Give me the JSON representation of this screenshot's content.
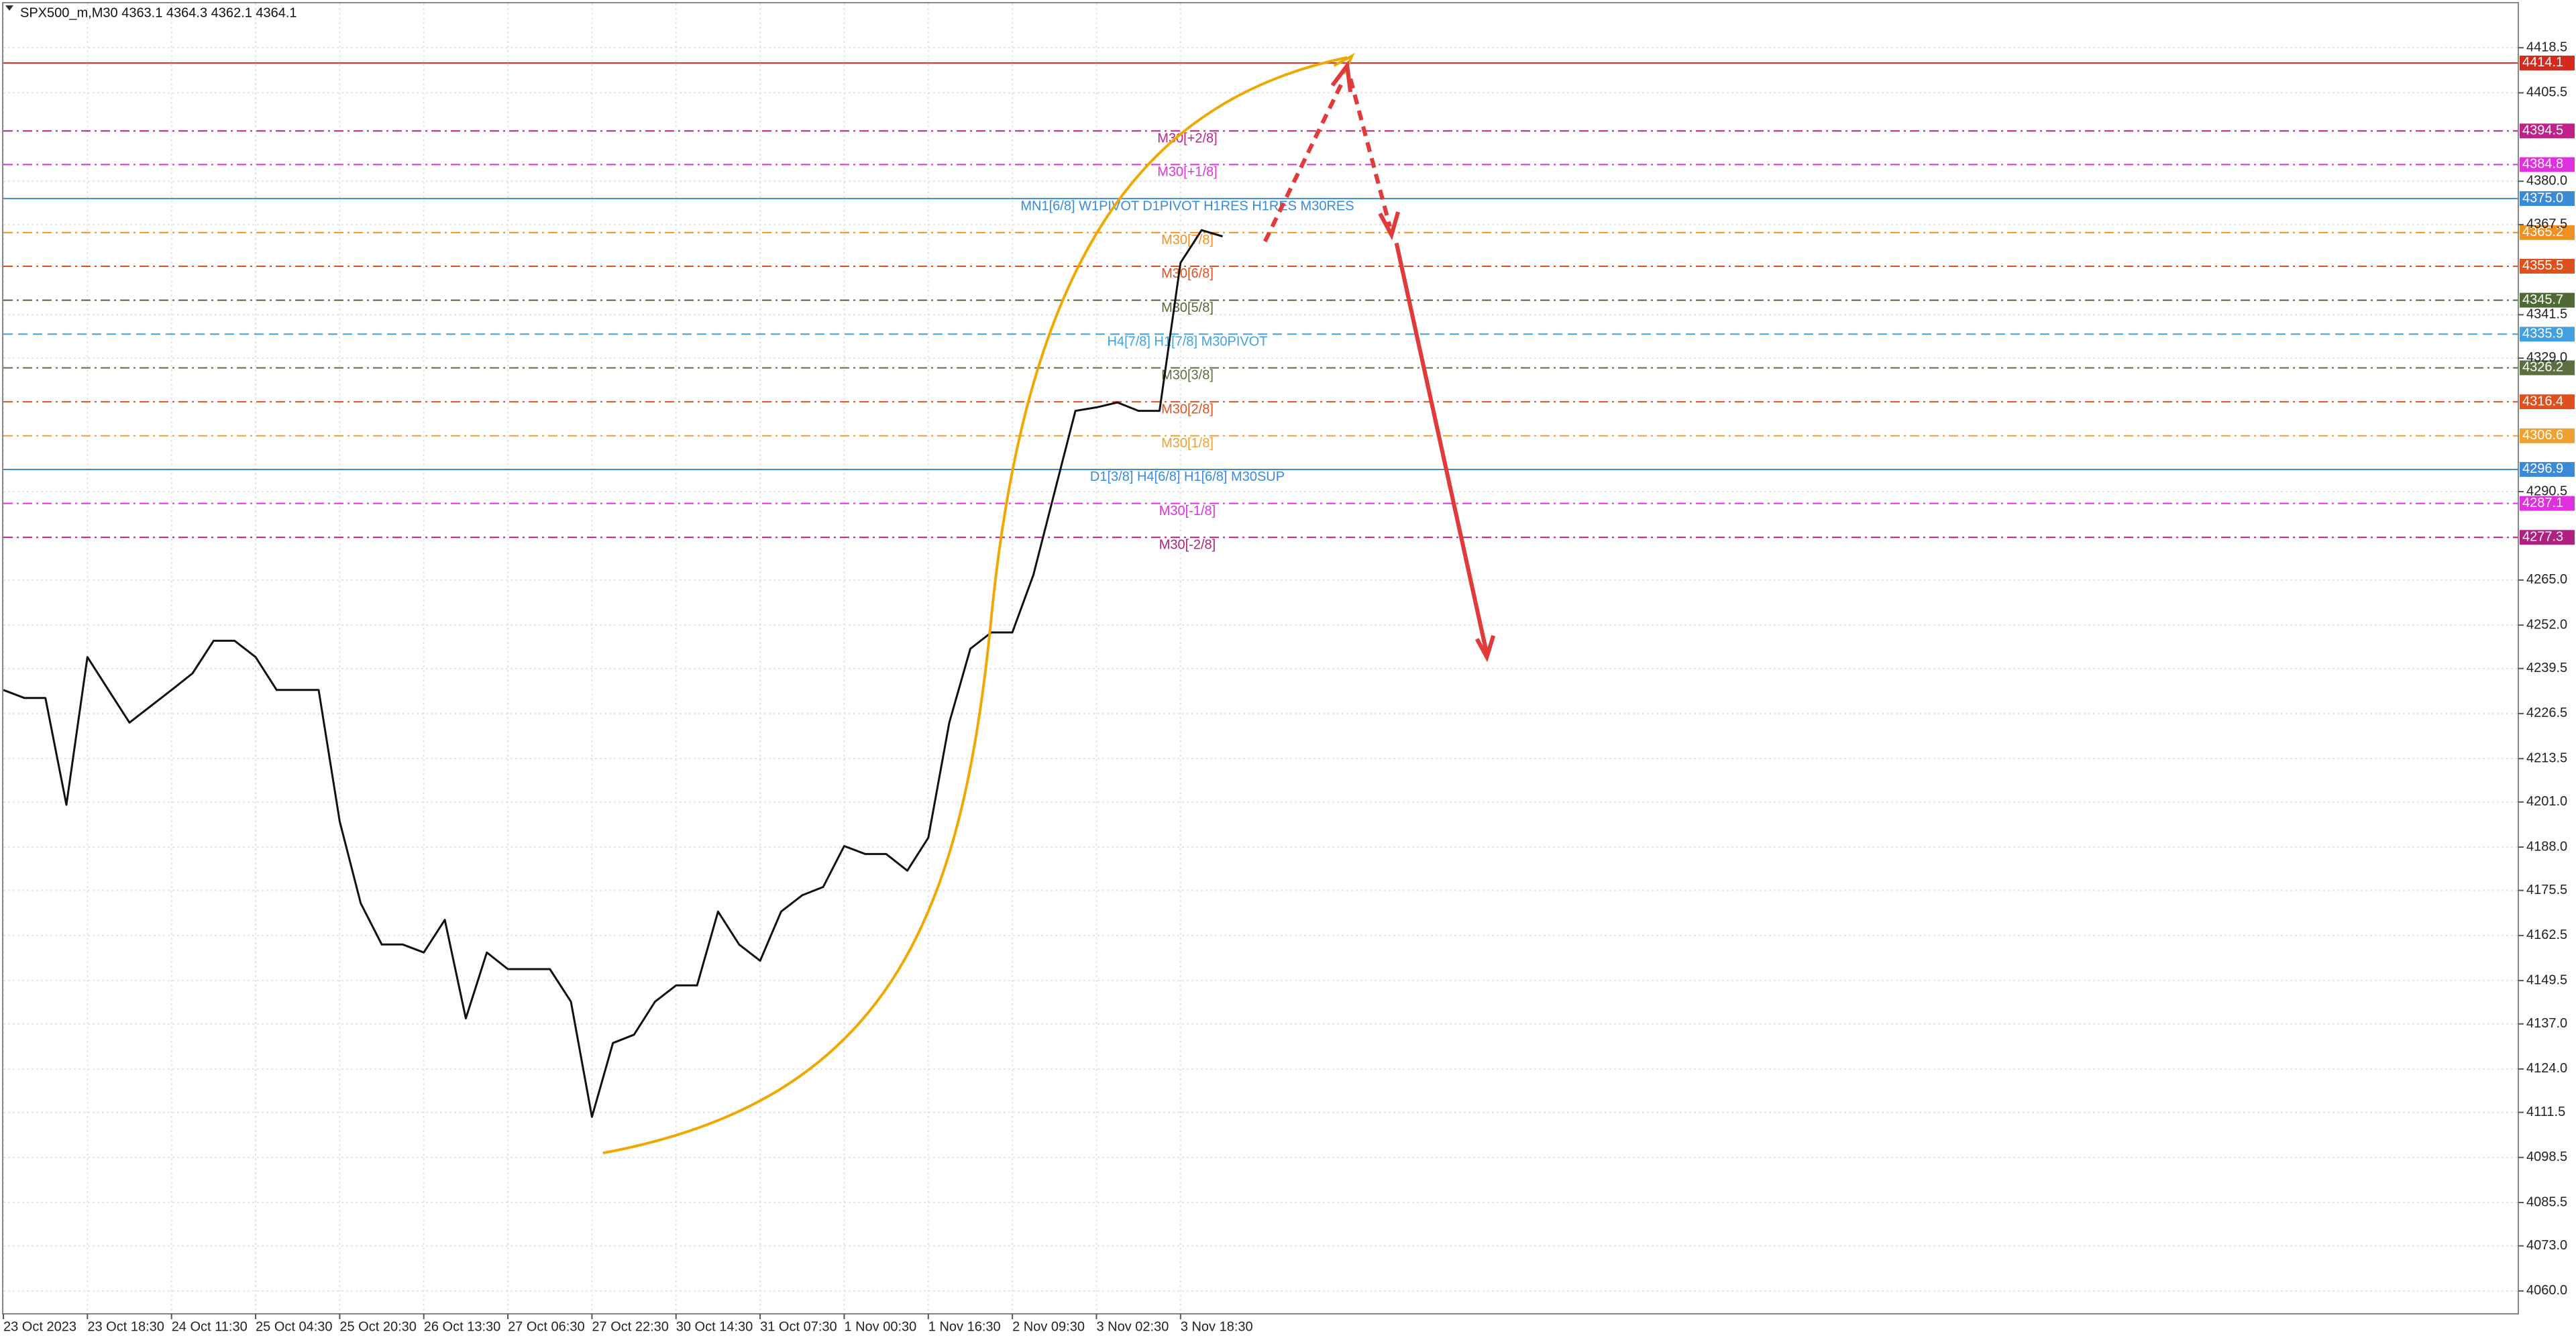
{
  "chart_data": {
    "type": "line",
    "title": "SPX500_m,M30  4363.1 4364.3 4362.1 4364.1",
    "categories": [
      "23 Oct 2023",
      null,
      null,
      null,
      "23 Oct 18:30",
      null,
      null,
      null,
      "24 Oct 11:30",
      null,
      null,
      null,
      "25 Oct 04:30",
      null,
      null,
      null,
      "25 Oct 20:30",
      null,
      null,
      null,
      "26 Oct 13:30",
      null,
      null,
      null,
      "27 Oct 06:30",
      null,
      null,
      null,
      "27 Oct 22:30",
      null,
      null,
      null,
      "30 Oct 14:30",
      null,
      null,
      null,
      "31 Oct 07:30",
      null,
      null,
      null,
      "1 Nov 00:30",
      null,
      null,
      null,
      "1 Nov 16:30",
      null,
      null,
      null,
      "2 Nov 09:30",
      null,
      null,
      null,
      "3 Nov 02:30",
      null,
      null,
      null,
      "3 Nov 18:30",
      null,
      null,
      null,
      null,
      null,
      null,
      null,
      null,
      null,
      null,
      null,
      null,
      null,
      null,
      null,
      null,
      null,
      null,
      null,
      null,
      null,
      null,
      null,
      null,
      null,
      null,
      null,
      null,
      null,
      null,
      null,
      null,
      null,
      null,
      null,
      null,
      null,
      null,
      null,
      null,
      null,
      null,
      null,
      null,
      null,
      null,
      null,
      null,
      null,
      null,
      null,
      null,
      null,
      null,
      null,
      null,
      null,
      null,
      null,
      null,
      null,
      null,
      null
    ],
    "values": [
      4233.3,
      4231.0,
      4231.0,
      4200.2,
      4242.8,
      4233.3,
      4223.9,
      4228.6,
      4233.3,
      4238.1,
      4247.5,
      4247.5,
      4242.8,
      4233.3,
      4233.3,
      4233.3,
      4195.4,
      4171.8,
      4159.9,
      4159.9,
      4157.6,
      4167.0,
      4138.6,
      4157.6,
      4152.8,
      4152.8,
      4152.8,
      4143.4,
      4110.2,
      4131.5,
      4133.9,
      4143.4,
      4148.1,
      4148.1,
      4169.4,
      4159.9,
      4155.2,
      4169.4,
      4174.1,
      4176.5,
      4188.3,
      4186.0,
      4186.0,
      4181.2,
      4190.7,
      4223.9,
      4245.2,
      4249.9,
      4249.9,
      4266.5,
      4290.2,
      4313.8,
      4314.8,
      4316.2,
      4313.8,
      4313.8,
      4356.5,
      4365.9,
      4364.1,
      null,
      null,
      null,
      null,
      null,
      null,
      null,
      null,
      null,
      null,
      null,
      null,
      null,
      null,
      null,
      null,
      null,
      null,
      null,
      null,
      null,
      null,
      null,
      null,
      null,
      null,
      null,
      null,
      null,
      null,
      null,
      null,
      null,
      null,
      null,
      null,
      null,
      null,
      null,
      null,
      null,
      null,
      null,
      null,
      null,
      null,
      null,
      null,
      null,
      null,
      null,
      null,
      null,
      null,
      null,
      null,
      null,
      null,
      null,
      null,
      null
    ],
    "color": "#111111",
    "ylim": [
      4053.4,
      4431.3
    ],
    "yticks": [
      4418.5,
      4405.5,
      {
        "value": 4380,
        "label": "4380.0"
      },
      4367.5,
      4341.5,
      {
        "value": 4329,
        "label": "4329.0"
      },
      4290.5,
      {
        "value": 4265,
        "label": "4265.0"
      },
      {
        "value": 4252,
        "label": "4252.0"
      },
      4239.5,
      4226.5,
      4213.5,
      {
        "value": 4201,
        "label": "4201.0"
      },
      {
        "value": 4188,
        "label": "4188.0"
      },
      4175.5,
      4162.5,
      4149.5,
      {
        "value": 4137,
        "label": "4137.0"
      },
      {
        "value": 4124,
        "label": "4124.0"
      },
      4111.5,
      4098.5,
      4085.5,
      {
        "value": 4073,
        "label": "4073.0"
      },
      {
        "value": 4060,
        "label": "4060.0"
      }
    ],
    "grid": true,
    "levels": [
      {
        "value": 4414.1,
        "color": "#d42a1e",
        "dash": "solid"
      },
      {
        "value": 4394.5,
        "color": "#c0208a",
        "dash": "dashdot",
        "text": "M30[+2/8]"
      },
      {
        "value": 4384.8,
        "color": "#e030e0",
        "dash": "dashdot",
        "text": "M30[+1/8]"
      },
      {
        "value": {
          "value": 4375,
          "label": "4375.0"
        },
        "color": "#3a8ad8",
        "dash": "solid",
        "text": "MN1[6/8] W1PIVOT D1PIVOT H1RES H1RES M30RES"
      },
      {
        "value": 4365.2,
        "color": "#f09020",
        "dash": "dashdot",
        "text": "M30[7/8]"
      },
      {
        "value": 4355.5,
        "color": "#e0501e",
        "dash": "dashdot",
        "text": "M30[6/8]"
      },
      {
        "value": 4345.7,
        "color": "#4e6a34",
        "dash": "dashdot",
        "text": "M30[5/8]"
      },
      {
        "value": 4335.9,
        "color": "#40a0e0",
        "dash": "dash",
        "text": "H4[7/8] H1[7/8] M30PIVOT"
      },
      {
        "value": 4326.2,
        "color": "#5a7040",
        "dash": "dashdot",
        "text": "M30[3/8]"
      },
      {
        "value": 4316.4,
        "color": "#e0501e",
        "dash": "dashdot",
        "text": "M30[2/8]"
      },
      {
        "value": 4306.6,
        "color": "#f0a030",
        "dash": "dashdot",
        "text": "M30[1/8]"
      },
      {
        "value": 4296.9,
        "color": "#3a8ad8",
        "dash": "solid",
        "text": "D1[3/8] H4[6/8] H1[6/8] M30SUP"
      },
      {
        "value": 4287.1,
        "color": "#e030e0",
        "dash": "dashdot",
        "text": "M30[-1/8]"
      },
      {
        "value": 4277.3,
        "color": "#b02080",
        "dash": "dashdot",
        "text": "M30[-2/8]"
      }
    ]
  }
}
